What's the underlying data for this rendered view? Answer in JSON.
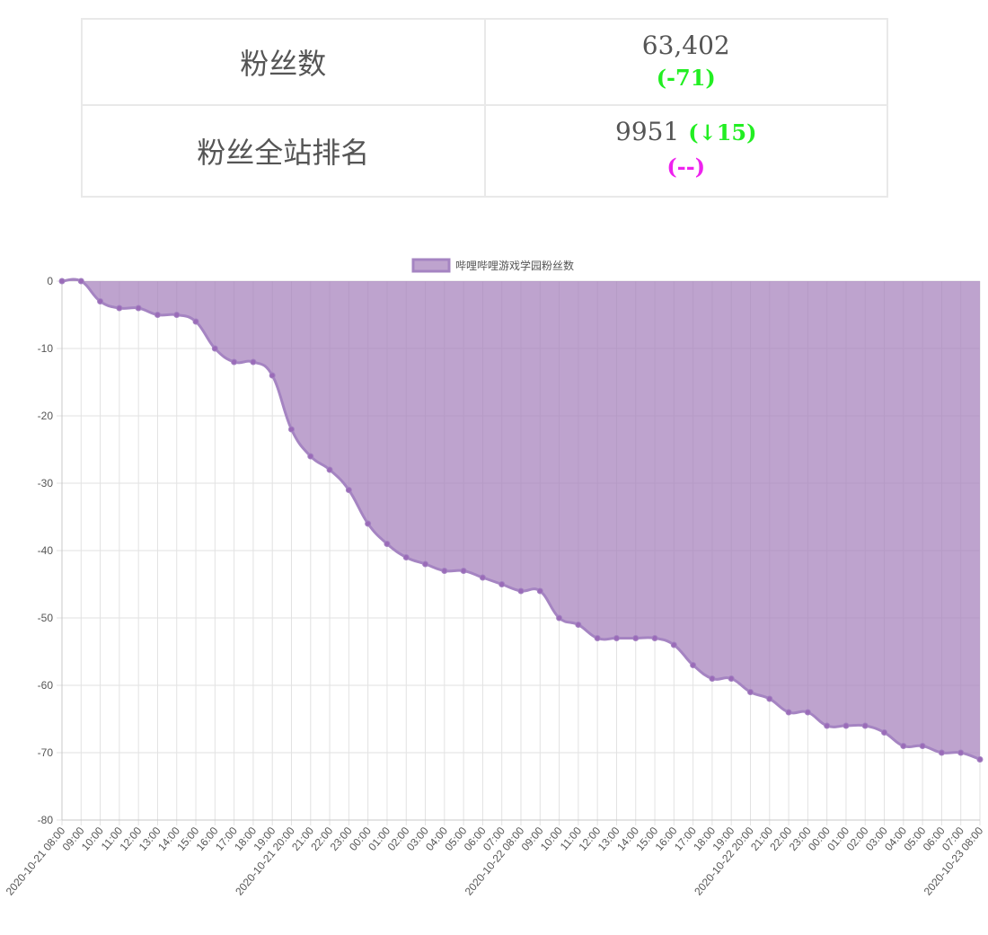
{
  "stats": {
    "fans_label": "粉丝数",
    "fans_value": "63,402",
    "fans_delta": "(-71)",
    "rank_label": "粉丝全站排名",
    "rank_value": "9951",
    "rank_delta": "(↓15)",
    "rank_sub": "(--)"
  },
  "colors": {
    "area_fill": "#a57fbb",
    "area_line": "#a584c2",
    "point": "#9a6bb8",
    "green": "#22ee22",
    "magenta": "#ee22ee"
  },
  "chart_data": {
    "type": "area",
    "legend": "哔哩哔哩游戏学园粉丝数",
    "legend_position": "top",
    "ylim": [
      -80,
      0
    ],
    "yticks": [
      0,
      -10,
      -20,
      -30,
      -40,
      -50,
      -60,
      -70,
      -80
    ],
    "grid": true,
    "x": [
      "2020-10-21 08:00",
      "09:00",
      "10:00",
      "11:00",
      "12:00",
      "13:00",
      "14:00",
      "15:00",
      "16:00",
      "17:00",
      "18:00",
      "19:00",
      "2020-10-21 20:00",
      "21:00",
      "22:00",
      "23:00",
      "00:00",
      "01:00",
      "02:00",
      "03:00",
      "04:00",
      "05:00",
      "06:00",
      "07:00",
      "2020-10-22 08:00",
      "09:00",
      "10:00",
      "11:00",
      "12:00",
      "13:00",
      "14:00",
      "15:00",
      "16:00",
      "17:00",
      "18:00",
      "19:00",
      "2020-10-22 20:00",
      "21:00",
      "22:00",
      "23:00",
      "00:00",
      "01:00",
      "02:00",
      "03:00",
      "04:00",
      "05:00",
      "06:00",
      "07:00",
      "2020-10-23 08:00"
    ],
    "series": [
      {
        "name": "哔哩哔哩游戏学园粉丝数",
        "values": [
          0,
          0,
          -3,
          -4,
          -4,
          -5,
          -5,
          -6,
          -10,
          -12,
          -12,
          -14,
          -22,
          -26,
          -28,
          -31,
          -36,
          -39,
          -41,
          -42,
          -43,
          -43,
          -44,
          -45,
          -46,
          -46,
          -50,
          -51,
          -53,
          -53,
          -53,
          -53,
          -54,
          -57,
          -59,
          -59,
          -61,
          -62,
          -64,
          -64,
          -66,
          -66,
          -66,
          -67,
          -69,
          -69,
          -70,
          -70,
          -71
        ]
      }
    ]
  }
}
